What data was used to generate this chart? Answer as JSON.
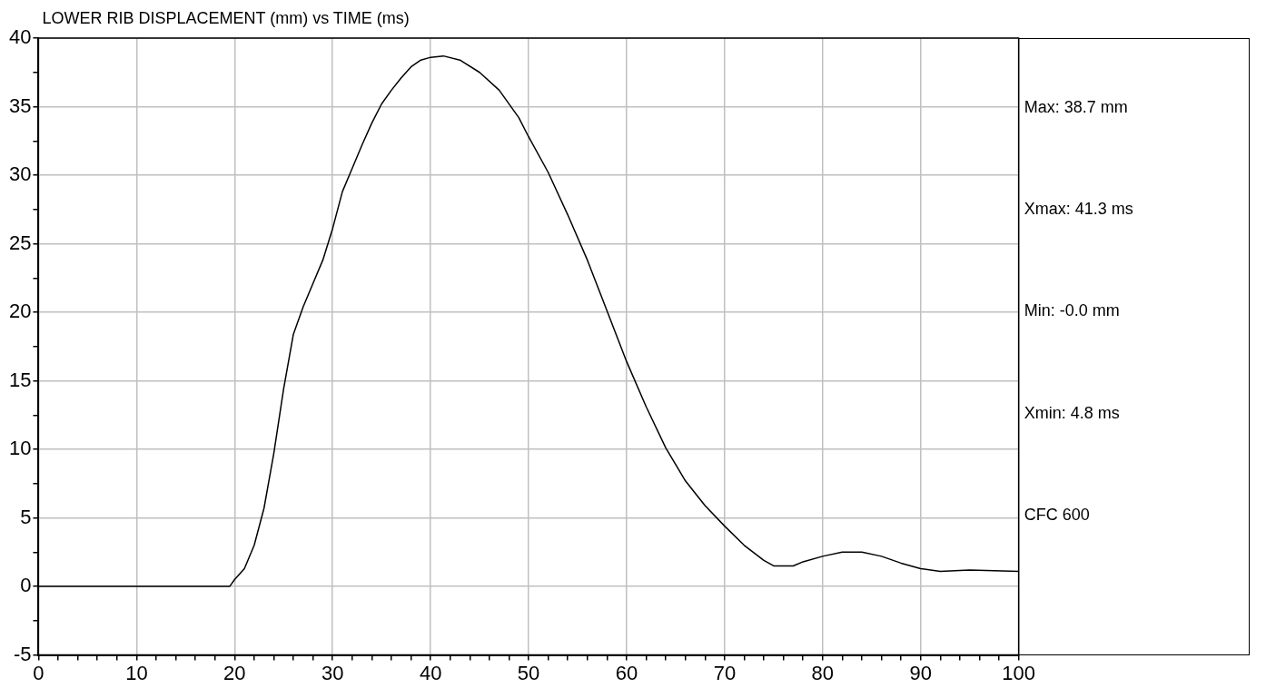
{
  "chart_data": {
    "type": "line",
    "title": "LOWER RIB DISPLACEMENT (mm) vs TIME (ms)",
    "x": [
      0,
      19.5,
      20,
      21,
      22,
      23,
      24,
      25,
      26,
      27,
      28,
      29,
      30,
      31,
      32,
      33,
      34,
      35,
      36,
      37,
      38,
      39,
      40,
      41.3,
      43,
      45,
      47,
      49,
      50,
      52,
      54,
      56,
      58,
      60,
      62,
      64,
      66,
      68,
      70,
      72,
      74,
      75,
      77,
      78,
      80,
      82,
      84,
      86,
      88,
      90,
      92,
      95,
      100
    ],
    "series": [
      {
        "color": "#000000",
        "values": [
          0,
          0,
          0.5,
          1.3,
          3,
          5.7,
          9.7,
          14.4,
          18.4,
          20.4,
          22.1,
          23.8,
          26.1,
          28.8,
          30.5,
          32.2,
          33.8,
          35.2,
          36.2,
          37.1,
          37.9,
          38.4,
          38.6,
          38.7,
          38.4,
          37.5,
          36.2,
          34.2,
          32.8,
          30.2,
          27.1,
          23.8,
          20.1,
          16.4,
          13.1,
          10.1,
          7.7,
          5.9,
          4.4,
          3.0,
          1.9,
          1.5,
          1.5,
          1.8,
          2.2,
          2.5,
          2.5,
          2.2,
          1.7,
          1.3,
          1.1,
          1.2,
          1.1
        ]
      }
    ],
    "xlim": [
      0,
      100
    ],
    "xticks": [
      0,
      {
        "value": 2,
        "label": null
      },
      {
        "value": 4,
        "label": null
      },
      {
        "value": 6,
        "label": null
      },
      {
        "value": 8,
        "label": null
      },
      10,
      {
        "value": 12,
        "label": null
      },
      {
        "value": 14,
        "label": null
      },
      {
        "value": 16,
        "label": null
      },
      {
        "value": 18,
        "label": null
      },
      20,
      {
        "value": 22,
        "label": null
      },
      {
        "value": 24,
        "label": null
      },
      {
        "value": 26,
        "label": null
      },
      {
        "value": 28,
        "label": null
      },
      30,
      {
        "value": 32,
        "label": null
      },
      {
        "value": 34,
        "label": null
      },
      {
        "value": 36,
        "label": null
      },
      {
        "value": 38,
        "label": null
      },
      40,
      {
        "value": 42,
        "label": null
      },
      {
        "value": 44,
        "label": null
      },
      {
        "value": 46,
        "label": null
      },
      {
        "value": 48,
        "label": null
      },
      50,
      {
        "value": 52,
        "label": null
      },
      {
        "value": 54,
        "label": null
      },
      {
        "value": 56,
        "label": null
      },
      {
        "value": 58,
        "label": null
      },
      60,
      {
        "value": 62,
        "label": null
      },
      {
        "value": 64,
        "label": null
      },
      {
        "value": 66,
        "label": null
      },
      {
        "value": 68,
        "label": null
      },
      70,
      {
        "value": 72,
        "label": null
      },
      {
        "value": 74,
        "label": null
      },
      {
        "value": 76,
        "label": null
      },
      {
        "value": 78,
        "label": null
      },
      80,
      {
        "value": 82,
        "label": null
      },
      {
        "value": 84,
        "label": null
      },
      {
        "value": 86,
        "label": null
      },
      {
        "value": 88,
        "label": null
      },
      90,
      {
        "value": 92,
        "label": null
      },
      {
        "value": 94,
        "label": null
      },
      {
        "value": 96,
        "label": null
      },
      {
        "value": 98,
        "label": null
      },
      100
    ],
    "ylim": [
      -5,
      40
    ],
    "yticks": [
      -5,
      {
        "value": -2.5,
        "label": null
      },
      0,
      {
        "value": 2.5,
        "label": null
      },
      5,
      {
        "value": 7.5,
        "label": null
      },
      10,
      {
        "value": 12.5,
        "label": null
      },
      15,
      {
        "value": 17.5,
        "label": null
      },
      20,
      {
        "value": 22.5,
        "label": null
      },
      25,
      {
        "value": 27.5,
        "label": null
      },
      30,
      {
        "value": 32.5,
        "label": null
      },
      35,
      {
        "value": 37.5,
        "label": null
      },
      40
    ],
    "grid": true,
    "legend": false,
    "marker": "none",
    "line_style": "solid",
    "annotations": [
      "Max: 38.7 mm",
      "Xmax: 41.3 ms",
      "Min: -0.0 mm",
      "Xmin: 4.8 ms",
      "CFC 600"
    ]
  }
}
